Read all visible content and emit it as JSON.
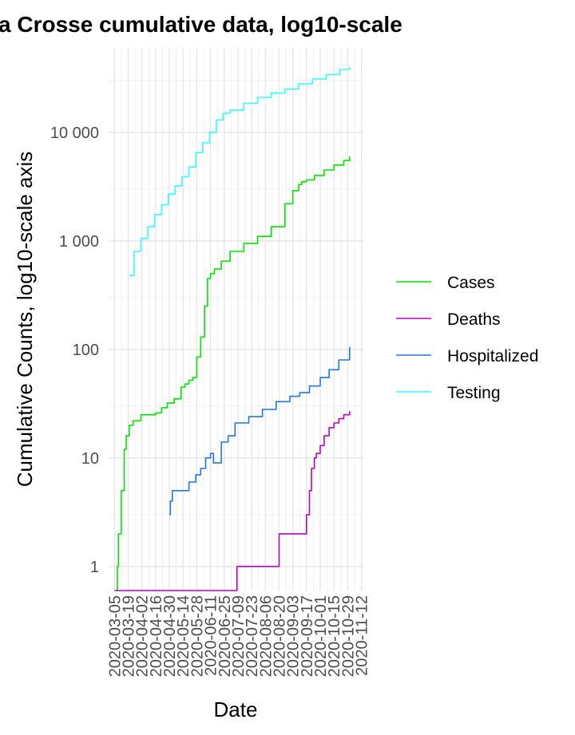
{
  "chart_data": {
    "type": "line",
    "title": "a Crosse cumulative data, log10-scale",
    "xlabel": "Date",
    "ylabel": "Cumulative Counts, log10-scale axis",
    "y_scale": "log10",
    "ylim": [
      0.6,
      60000
    ],
    "xlim": [
      "2020-02-28",
      "2020-11-14"
    ],
    "y_tick_values": [
      1,
      10,
      100,
      1000,
      10000
    ],
    "y_tick_labels": [
      "1",
      "10",
      "100",
      "1 000",
      "10 000"
    ],
    "x_tick_labels": [
      "2020-03-05",
      "2020-03-19",
      "2020-04-02",
      "2020-04-16",
      "2020-04-30",
      "2020-05-14",
      "2020-05-28",
      "2020-06-11",
      "2020-06-25",
      "2020-07-09",
      "2020-07-23",
      "2020-08-06",
      "2020-08-20",
      "2020-09-03",
      "2020-09-17",
      "2020-10-01",
      "2020-10-15",
      "2020-10-29",
      "2020-11-12"
    ],
    "grid": true,
    "legend_position": "right",
    "series": [
      {
        "name": "Cases",
        "color": "#00e600",
        "x": [
          "2020-03-06",
          "2020-03-08",
          "2020-03-09",
          "2020-03-12",
          "2020-03-13",
          "2020-03-15",
          "2020-03-17",
          "2020-03-20",
          "2020-03-24",
          "2020-04-01",
          "2020-04-10",
          "2020-04-16",
          "2020-04-22",
          "2020-04-28",
          "2020-05-05",
          "2020-05-12",
          "2020-05-16",
          "2020-05-20",
          "2020-05-24",
          "2020-05-28",
          "2020-06-01",
          "2020-06-05",
          "2020-06-08",
          "2020-06-11",
          "2020-06-15",
          "2020-06-22",
          "2020-07-01",
          "2020-07-15",
          "2020-07-29",
          "2020-08-12",
          "2020-08-26",
          "2020-09-03",
          "2020-09-09",
          "2020-09-12",
          "2020-09-17",
          "2020-09-25",
          "2020-10-05",
          "2020-10-15",
          "2020-10-25",
          "2020-10-31"
        ],
        "y": [
          0.6,
          1,
          2,
          5,
          5,
          12,
          16,
          20,
          22,
          25,
          25,
          26,
          29,
          32,
          35,
          45,
          48,
          52,
          55,
          85,
          130,
          250,
          450,
          500,
          550,
          650,
          800,
          950,
          1100,
          1350,
          2200,
          2900,
          3300,
          3500,
          3650,
          4000,
          4500,
          5000,
          5500,
          6000
        ]
      },
      {
        "name": "Deaths",
        "color": "#c000c0",
        "x": [
          "2020-03-05",
          "2020-07-08",
          "2020-07-08",
          "2020-08-20",
          "2020-08-20",
          "2020-09-16",
          "2020-09-17",
          "2020-09-20",
          "2020-09-22",
          "2020-09-25",
          "2020-09-27",
          "2020-10-01",
          "2020-10-05",
          "2020-10-10",
          "2020-10-15",
          "2020-10-20",
          "2020-10-25",
          "2020-10-31"
        ],
        "y": [
          0.6,
          0.6,
          1,
          1,
          2,
          2,
          3,
          5,
          8,
          10,
          11,
          13,
          16,
          19,
          21,
          23,
          25,
          27
        ]
      },
      {
        "name": "Hospitalized",
        "color": "#1f78e0",
        "x": [
          "2020-04-30",
          "2020-05-01",
          "2020-05-03",
          "2020-05-14",
          "2020-05-20",
          "2020-05-27",
          "2020-06-01",
          "2020-06-06",
          "2020-06-08",
          "2020-06-11",
          "2020-06-14",
          "2020-06-22",
          "2020-06-29",
          "2020-07-06",
          "2020-07-20",
          "2020-08-03",
          "2020-08-17",
          "2020-08-31",
          "2020-09-10",
          "2020-09-20",
          "2020-10-01",
          "2020-10-10",
          "2020-10-20",
          "2020-10-31"
        ],
        "y": [
          3,
          4,
          5,
          5,
          6,
          7,
          8,
          10,
          10,
          11,
          9,
          14,
          16,
          21,
          24,
          28,
          33,
          37,
          40,
          46,
          55,
          65,
          80,
          105
        ]
      },
      {
        "name": "Testing",
        "color": "#33ffff",
        "x": [
          "2020-03-20",
          "2020-03-25",
          "2020-04-01",
          "2020-04-08",
          "2020-04-15",
          "2020-04-22",
          "2020-04-29",
          "2020-05-06",
          "2020-05-13",
          "2020-05-20",
          "2020-05-27",
          "2020-06-03",
          "2020-06-10",
          "2020-06-17",
          "2020-06-24",
          "2020-07-01",
          "2020-07-15",
          "2020-07-29",
          "2020-08-12",
          "2020-08-26",
          "2020-09-09",
          "2020-09-23",
          "2020-10-07",
          "2020-10-21",
          "2020-10-31"
        ],
        "y": [
          480,
          800,
          1050,
          1350,
          1750,
          2150,
          2700,
          3200,
          3900,
          4800,
          6500,
          8000,
          10000,
          13000,
          15000,
          16000,
          18500,
          21000,
          23000,
          25000,
          28000,
          31000,
          34000,
          38000,
          40000
        ]
      }
    ]
  }
}
